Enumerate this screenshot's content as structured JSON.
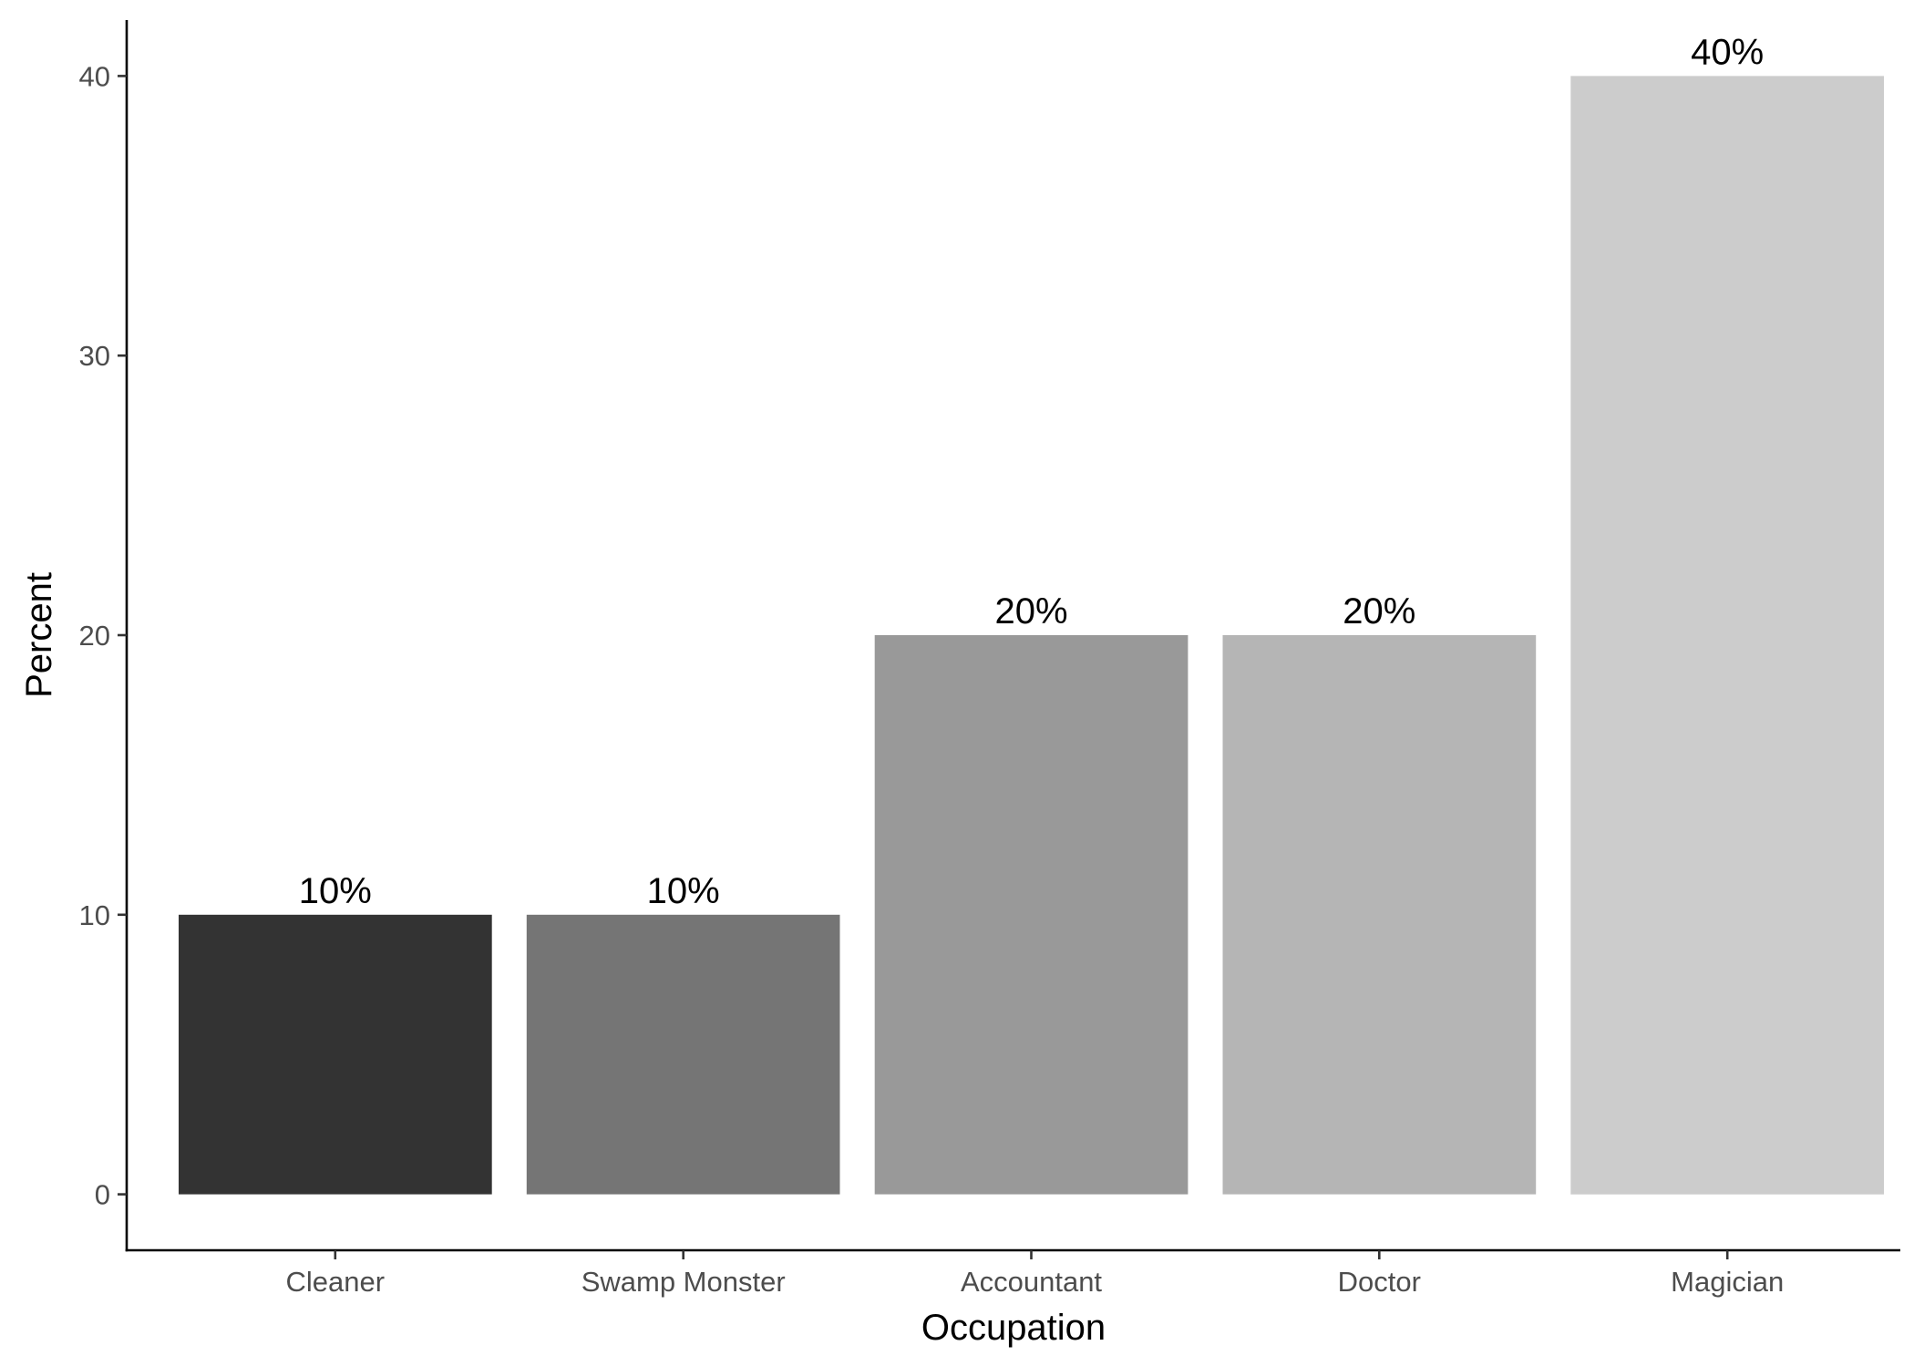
{
  "chart_data": {
    "type": "bar",
    "categories": [
      "Cleaner",
      "Swamp Monster",
      "Accountant",
      "Doctor",
      "Magician"
    ],
    "values": [
      10,
      10,
      20,
      20,
      40
    ],
    "data_labels": [
      "10%",
      "10%",
      "20%",
      "20%",
      "40%"
    ],
    "colors": [
      "#333333",
      "#757575",
      "#999999",
      "#b5b5b5",
      "#cccccc"
    ],
    "xlabel": "Occupation",
    "ylabel": "Percent",
    "yticks": [
      0,
      10,
      20,
      30,
      40
    ],
    "ylim": [
      -2,
      42
    ],
    "grid": false,
    "legend": "none"
  }
}
